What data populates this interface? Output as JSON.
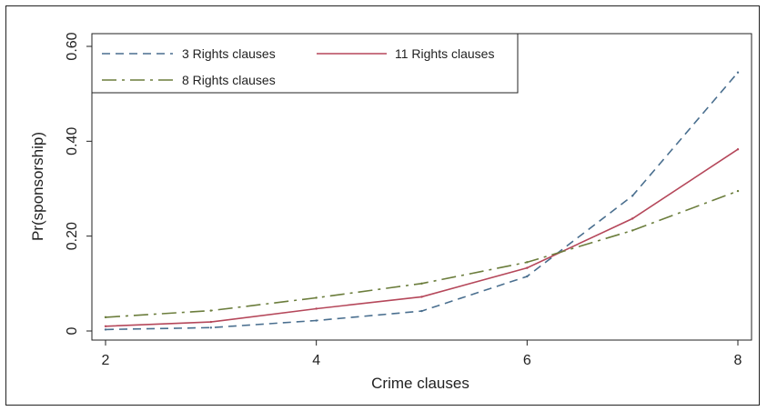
{
  "chart_data": {
    "type": "line",
    "xlabel": "Crime clauses",
    "ylabel": "Pr(sponsorship)",
    "xlim": [
      2,
      8
    ],
    "ylim": [
      0,
      0.6
    ],
    "x_ticks": [
      "2",
      "4",
      "6",
      "8"
    ],
    "y_ticks": [
      "0",
      "0.20",
      "0.40",
      "0.60"
    ],
    "x": [
      2,
      3,
      4,
      5,
      6,
      7,
      8
    ],
    "series": [
      {
        "name": "3 Rights clauses",
        "color": "#4a6f8f",
        "dash": "dashed",
        "values": [
          0.003,
          0.007,
          0.022,
          0.042,
          0.115,
          0.285,
          0.545
        ]
      },
      {
        "name": "11 Rights clauses",
        "color": "#b5475a",
        "dash": "solid",
        "values": [
          0.01,
          0.019,
          0.047,
          0.072,
          0.133,
          0.237,
          0.383
        ]
      },
      {
        "name": "8 Rights clauses",
        "color": "#6b7d3c",
        "dash": "longdash",
        "values": [
          0.029,
          0.043,
          0.07,
          0.1,
          0.145,
          0.212,
          0.295
        ]
      }
    ],
    "legend": "top-left inside plot",
    "grid": false
  }
}
